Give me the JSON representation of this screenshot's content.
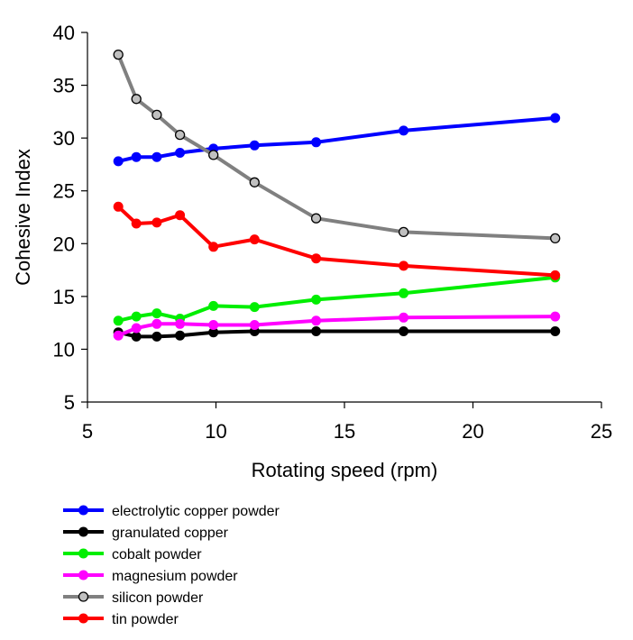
{
  "chart_data": {
    "type": "line",
    "title": "",
    "xlabel": "Rotating speed (rpm)",
    "ylabel": "Cohesive Index",
    "xlim": [
      5,
      25
    ],
    "ylim": [
      5,
      40
    ],
    "xticks": [
      5,
      10,
      15,
      20,
      25
    ],
    "yticks": [
      5,
      10,
      15,
      20,
      25,
      30,
      35,
      40
    ],
    "grid": false,
    "legend_position": "bottom",
    "series": [
      {
        "name": "electrolytic copper powder",
        "color": "#0000ff",
        "marker_fill": "#0000ff",
        "points": [
          [
            6.2,
            27.8
          ],
          [
            6.9,
            28.2
          ],
          [
            7.7,
            28.2
          ],
          [
            8.6,
            28.6
          ],
          [
            9.9,
            29.0
          ],
          [
            11.5,
            29.3
          ],
          [
            13.9,
            29.6
          ],
          [
            17.3,
            30.7
          ],
          [
            23.2,
            31.9
          ]
        ]
      },
      {
        "name": "granulated copper",
        "color": "#000000",
        "marker_fill": "#000000",
        "points": [
          [
            6.2,
            11.6
          ],
          [
            6.9,
            11.2
          ],
          [
            7.7,
            11.2
          ],
          [
            8.6,
            11.3
          ],
          [
            9.9,
            11.6
          ],
          [
            11.5,
            11.7
          ],
          [
            13.9,
            11.7
          ],
          [
            17.3,
            11.7
          ],
          [
            23.2,
            11.7
          ]
        ]
      },
      {
        "name": "cobalt powder",
        "color": "#00ee00",
        "marker_fill": "#00ee00",
        "points": [
          [
            6.2,
            12.7
          ],
          [
            6.9,
            13.1
          ],
          [
            7.7,
            13.4
          ],
          [
            8.6,
            12.9
          ],
          [
            9.9,
            14.1
          ],
          [
            11.5,
            14.0
          ],
          [
            13.9,
            14.7
          ],
          [
            17.3,
            15.3
          ],
          [
            23.2,
            16.8
          ]
        ]
      },
      {
        "name": "magnesium powder",
        "color": "#ff00ff",
        "marker_fill": "#ff00ff",
        "points": [
          [
            6.2,
            11.3
          ],
          [
            6.9,
            12.0
          ],
          [
            7.7,
            12.4
          ],
          [
            8.6,
            12.4
          ],
          [
            9.9,
            12.3
          ],
          [
            11.5,
            12.3
          ],
          [
            13.9,
            12.7
          ],
          [
            17.3,
            13.0
          ],
          [
            23.2,
            13.1
          ]
        ]
      },
      {
        "name": "silicon powder",
        "color": "#808080",
        "marker_fill": "#c0c0c0",
        "marker_stroke": "#000000",
        "points": [
          [
            6.2,
            37.9
          ],
          [
            6.9,
            33.7
          ],
          [
            7.7,
            32.2
          ],
          [
            8.6,
            30.3
          ],
          [
            9.9,
            28.4
          ],
          [
            11.5,
            25.8
          ],
          [
            13.9,
            22.4
          ],
          [
            17.3,
            21.1
          ],
          [
            23.2,
            20.5
          ]
        ]
      },
      {
        "name": "tin powder",
        "color": "#ff0000",
        "marker_fill": "#ff0000",
        "points": [
          [
            6.2,
            23.5
          ],
          [
            6.9,
            21.9
          ],
          [
            7.7,
            22.0
          ],
          [
            8.6,
            22.7
          ],
          [
            9.9,
            19.7
          ],
          [
            11.5,
            20.4
          ],
          [
            13.9,
            18.6
          ],
          [
            17.3,
            17.9
          ],
          [
            23.2,
            17.0
          ]
        ]
      }
    ]
  }
}
